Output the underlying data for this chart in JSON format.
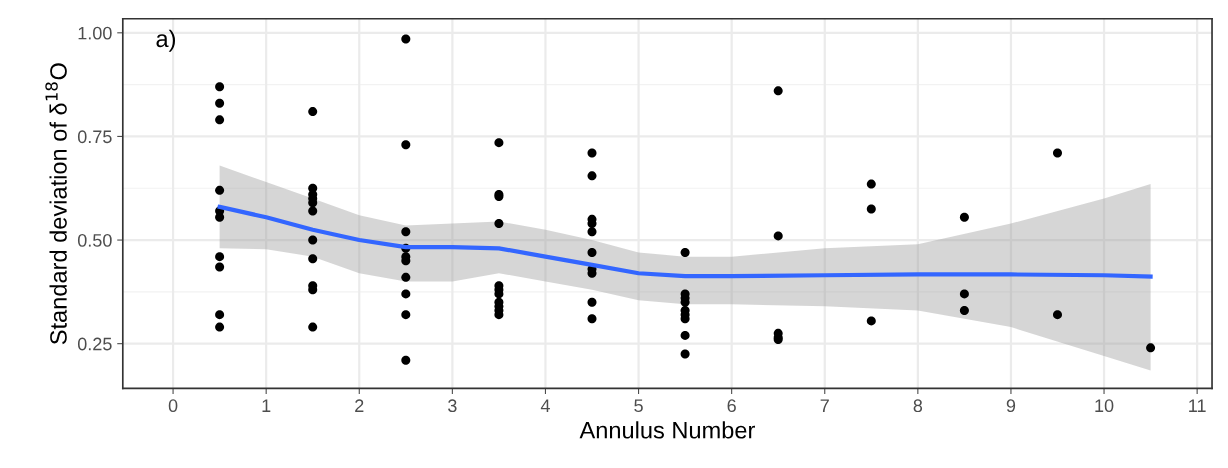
{
  "chart_data": {
    "type": "scatter",
    "xlabel": "Annulus Number",
    "ylabel": "Standard deviation of δ$^{18}$O",
    "annotations": [
      "a)"
    ],
    "xlim": [
      -0.54,
      11.16
    ],
    "ylim": [
      0.142,
      1.034
    ],
    "xticks": [
      0,
      1,
      2,
      3,
      4,
      5,
      6,
      7,
      8,
      9,
      10,
      11
    ],
    "yticks": [
      {
        "value": 0.25,
        "label": "0.25"
      },
      {
        "value": 0.5,
        "label": "0.50"
      },
      {
        "value": 0.75,
        "label": "0.75"
      },
      {
        "value": 1.0,
        "label": "1.00"
      }
    ],
    "grid": true,
    "legend": false,
    "marker": "circle",
    "series": [
      {
        "type": "scatter",
        "color": "#000000",
        "x": [
          0.5,
          0.5,
          0.5,
          0.5,
          0.5,
          0.5,
          0.5,
          0.5,
          0.5,
          0.5,
          1.5,
          1.5,
          1.5,
          1.5,
          1.5,
          1.5,
          1.5,
          1.5,
          1.5,
          1.5,
          1.5,
          2.5,
          2.5,
          2.5,
          2.5,
          2.5,
          2.5,
          2.5,
          2.5,
          2.5,
          2.5,
          3.5,
          3.5,
          3.5,
          3.5,
          3.5,
          3.5,
          3.5,
          3.5,
          3.5,
          3.5,
          3.5,
          4.5,
          4.5,
          4.5,
          4.5,
          4.5,
          4.5,
          4.5,
          4.5,
          4.5,
          4.5,
          5.5,
          5.5,
          5.5,
          5.5,
          5.5,
          5.5,
          5.5,
          5.5,
          5.5,
          6.5,
          6.5,
          6.5,
          6.5,
          6.5,
          7.5,
          7.5,
          7.5,
          8.5,
          8.5,
          8.5,
          9.5,
          9.5,
          10.5
        ],
        "values": [
          0.87,
          0.83,
          0.79,
          0.62,
          0.57,
          0.555,
          0.46,
          0.435,
          0.32,
          0.29,
          0.81,
          0.625,
          0.61,
          0.6,
          0.59,
          0.57,
          0.5,
          0.455,
          0.39,
          0.38,
          0.29,
          0.985,
          0.73,
          0.52,
          0.48,
          0.46,
          0.45,
          0.41,
          0.37,
          0.32,
          0.21,
          0.735,
          0.61,
          0.605,
          0.54,
          0.39,
          0.38,
          0.37,
          0.35,
          0.34,
          0.33,
          0.32,
          0.71,
          0.655,
          0.55,
          0.54,
          0.52,
          0.47,
          0.43,
          0.42,
          0.35,
          0.31,
          0.47,
          0.37,
          0.36,
          0.35,
          0.33,
          0.32,
          0.31,
          0.27,
          0.225,
          0.86,
          0.51,
          0.275,
          0.265,
          0.26,
          0.635,
          0.575,
          0.305,
          0.555,
          0.37,
          0.33,
          0.71,
          0.32,
          0.24
        ]
      },
      {
        "type": "line",
        "color": "#3366ff",
        "marker": "none",
        "line_style": "solid",
        "x": [
          0.5,
          1,
          1.5,
          2,
          2.5,
          3,
          3.5,
          4,
          4.5,
          5,
          5.5,
          6,
          7,
          8,
          9,
          10,
          10.5
        ],
        "values": [
          0.58,
          0.555,
          0.525,
          0.5,
          0.483,
          0.483,
          0.48,
          0.46,
          0.44,
          0.42,
          0.413,
          0.413,
          0.415,
          0.417,
          0.417,
          0.415,
          0.412
        ],
        "lower": [
          0.48,
          0.478,
          0.46,
          0.42,
          0.4,
          0.4,
          0.42,
          0.4,
          0.38,
          0.355,
          0.345,
          0.345,
          0.34,
          0.33,
          0.29,
          0.22,
          0.185
        ],
        "upper": [
          0.68,
          0.64,
          0.6,
          0.56,
          0.535,
          0.54,
          0.545,
          0.525,
          0.5,
          0.47,
          0.46,
          0.46,
          0.48,
          0.49,
          0.54,
          0.6,
          0.635
        ]
      }
    ]
  }
}
